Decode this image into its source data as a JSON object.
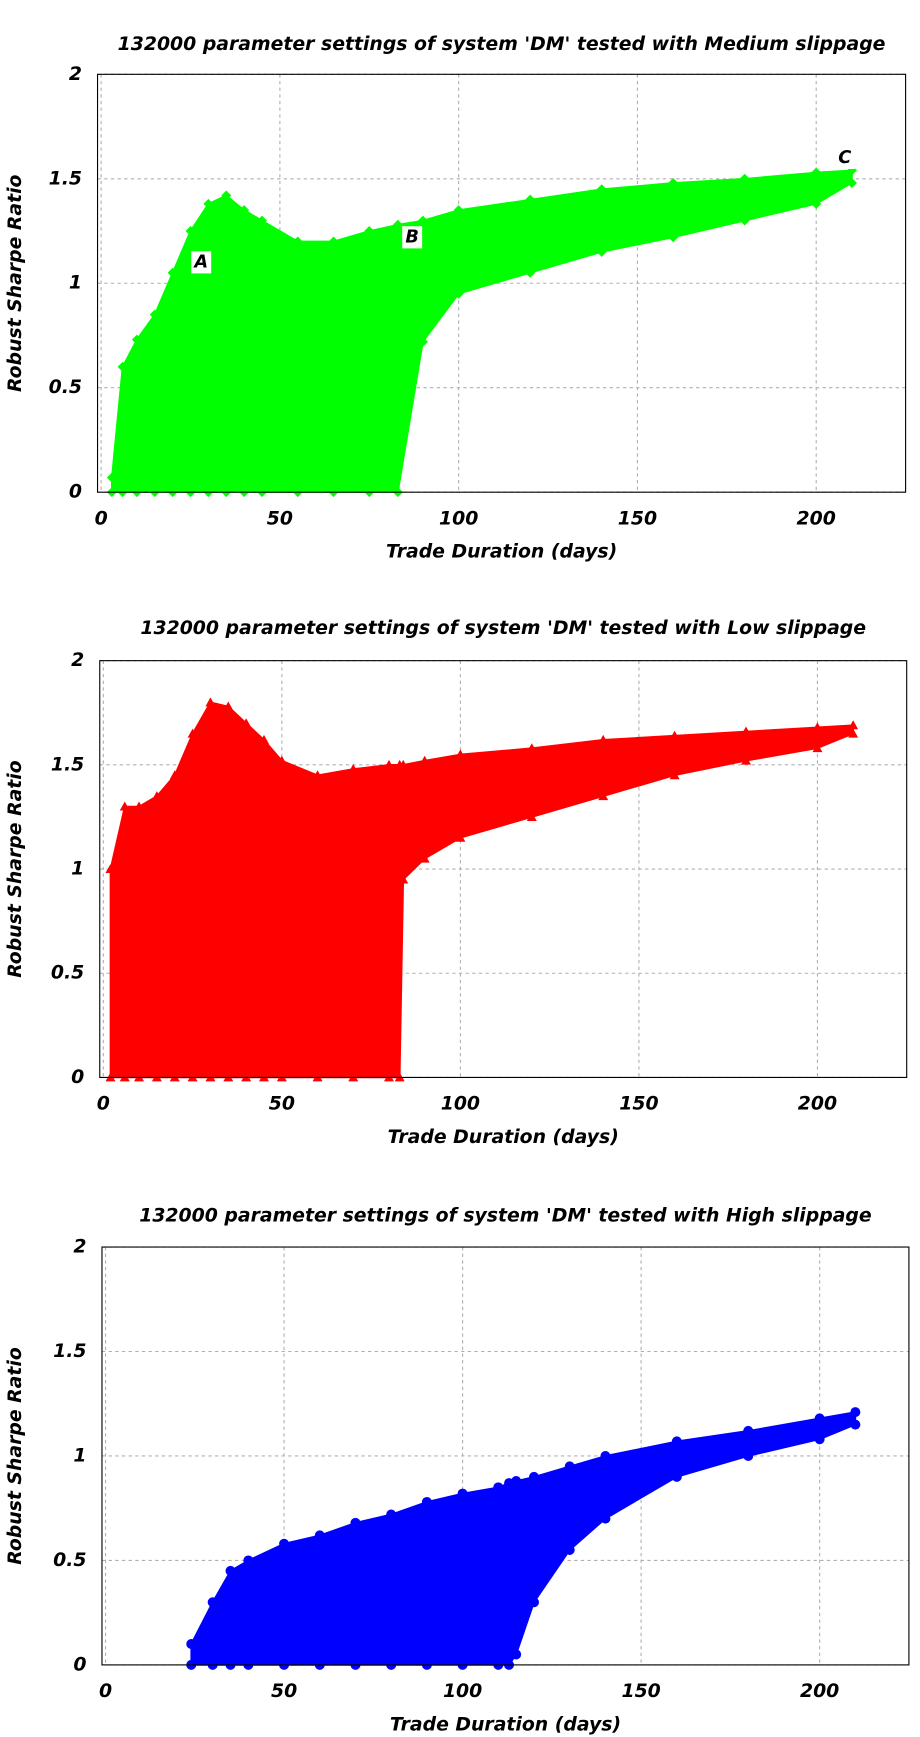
{
  "chart_data": [
    {
      "type": "range",
      "title": "132000 parameter settings of system 'DM'  tested with Medium slippage",
      "x_label": "Trade Duration (days)",
      "y_label": "Robust Sharpe Ratio",
      "color": "#00ff00",
      "marker": "diamond",
      "x": [
        3,
        6,
        10,
        15,
        20,
        25,
        30,
        35,
        40,
        45,
        55,
        65,
        75,
        83,
        90,
        100,
        120,
        140,
        160,
        180,
        200,
        210
      ],
      "high": [
        0.07,
        0.6,
        0.73,
        0.85,
        1.05,
        1.25,
        1.38,
        1.42,
        1.35,
        1.3,
        1.2,
        1.2,
        1.25,
        1.28,
        1.3,
        1.35,
        1.4,
        1.45,
        1.48,
        1.5,
        1.53,
        1.54
      ],
      "low": [
        0,
        0,
        0,
        0,
        0,
        0,
        0,
        0,
        0,
        0,
        0,
        0,
        0,
        0,
        0.72,
        0.95,
        1.05,
        1.15,
        1.22,
        1.3,
        1.38,
        1.48
      ],
      "annotations": [
        {
          "text": "A",
          "x": 28,
          "y": 1.1
        },
        {
          "text": "B",
          "x": 87,
          "y": 1.22
        },
        {
          "text": "C",
          "x": 208,
          "y": 1.6
        }
      ],
      "xlim": [
        -1,
        225
      ],
      "xticks": [
        0,
        50,
        100,
        150,
        200
      ],
      "ylim": [
        0,
        2
      ],
      "yticks": [
        0,
        0.5,
        1,
        1.5,
        2
      ],
      "grid": true
    },
    {
      "type": "range",
      "title": "132000 parameter settings of system 'DM'  tested with Low slippage",
      "x_label": "Trade Duration (days)",
      "y_label": "Robust Sharpe Ratio",
      "color": "#ff0000",
      "marker": "triangle",
      "x": [
        2,
        6,
        10,
        15,
        20,
        25,
        30,
        35,
        40,
        45,
        50,
        60,
        70,
        80,
        83,
        84,
        90,
        100,
        120,
        140,
        160,
        180,
        200,
        210
      ],
      "high": [
        1.0,
        1.3,
        1.3,
        1.35,
        1.45,
        1.65,
        1.8,
        1.78,
        1.7,
        1.62,
        1.52,
        1.45,
        1.48,
        1.5,
        1.5,
        1.5,
        1.52,
        1.55,
        1.58,
        1.62,
        1.64,
        1.66,
        1.68,
        1.69
      ],
      "low": [
        0,
        0,
        0,
        0,
        0,
        0,
        0,
        0,
        0,
        0,
        0,
        0,
        0,
        0,
        0,
        0.95,
        1.05,
        1.15,
        1.25,
        1.35,
        1.45,
        1.52,
        1.58,
        1.65
      ],
      "xlim": [
        -1,
        225
      ],
      "xticks": [
        0,
        50,
        100,
        150,
        200
      ],
      "ylim": [
        0,
        2
      ],
      "yticks": [
        0,
        0.5,
        1,
        1.5,
        2
      ],
      "grid": true
    },
    {
      "type": "range",
      "title": "132000 parameter settings of system 'DM'  tested with High slippage",
      "x_label": "Trade Duration (days)",
      "y_label": "Robust Sharpe Ratio",
      "color": "#0000ff",
      "marker": "circle",
      "x": [
        24,
        30,
        35,
        40,
        50,
        60,
        70,
        80,
        90,
        100,
        110,
        113,
        115,
        120,
        130,
        140,
        160,
        180,
        200,
        210
      ],
      "high": [
        0.1,
        0.3,
        0.45,
        0.5,
        0.58,
        0.62,
        0.68,
        0.72,
        0.78,
        0.82,
        0.85,
        0.87,
        0.88,
        0.9,
        0.95,
        1.0,
        1.07,
        1.12,
        1.18,
        1.21
      ],
      "low": [
        0,
        0,
        0,
        0,
        0,
        0,
        0,
        0,
        0,
        0,
        0,
        0,
        0.05,
        0.3,
        0.55,
        0.7,
        0.9,
        1.0,
        1.08,
        1.15
      ],
      "xlim": [
        -1,
        225
      ],
      "xticks": [
        0,
        50,
        100,
        150,
        200
      ],
      "ylim": [
        0,
        2
      ],
      "yticks": [
        0,
        0.5,
        1,
        1.5,
        2
      ],
      "grid": true
    }
  ]
}
